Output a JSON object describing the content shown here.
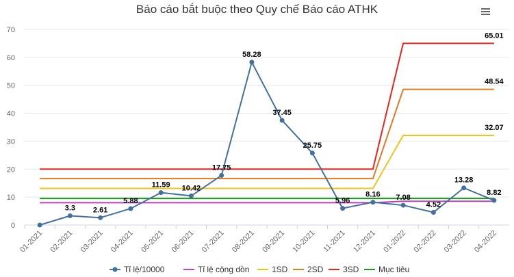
{
  "title": "Báo cáo bắt buộc theo Quy chế Báo cáo ATHK",
  "menu_icon": "hamburger-menu-icon",
  "chart_data": {
    "type": "line",
    "title": "Báo cáo bắt buộc theo Quy chế Báo cáo ATHK",
    "xlabel": "",
    "ylabel": "",
    "ylim": [
      0,
      70
    ],
    "yticks": [
      0,
      10,
      20,
      30,
      40,
      50,
      60,
      70
    ],
    "grid": true,
    "legend_position": "bottom",
    "categories": [
      "01-2021",
      "02-2021",
      "03-2021",
      "04-2021",
      "05-2021",
      "06-2021",
      "07-2021",
      "08-2021",
      "09-2021",
      "10-2021",
      "11-2021",
      "12-2021",
      "01-2022",
      "02-2022",
      "03-2022",
      "04-2022"
    ],
    "series": [
      {
        "name": "Tỉ lệ/10000",
        "color": "#44709d",
        "markers": true,
        "values": [
          0,
          3.3,
          2.61,
          5.88,
          11.59,
          10.42,
          17.75,
          58.28,
          37.45,
          25.75,
          5.96,
          8.16,
          7.08,
          4.52,
          13.28,
          8.82
        ],
        "labels": [
          "",
          "3.3",
          "2.61",
          "5.88",
          "11.59",
          "10.42",
          "17.75",
          "58.28",
          "37.45",
          "25.75",
          "5.96",
          "8.16",
          "7.08",
          "4.52",
          "13.28",
          "8.82"
        ]
      },
      {
        "name": "Tỉ lệ cộng dồn",
        "color": "#bf40bf",
        "markers": false,
        "values": [
          8,
          8,
          8,
          8,
          8,
          8,
          8,
          8,
          8,
          8,
          8,
          8,
          8.5,
          8.5,
          8.5,
          8.5
        ]
      },
      {
        "name": "1SD",
        "color": "#f0c419",
        "markers": false,
        "values": [
          13.1,
          13.1,
          13.1,
          13.1,
          13.1,
          13.1,
          13.1,
          13.1,
          13.1,
          13.1,
          13.1,
          13.1,
          32.07,
          32.07,
          32.07,
          32.07
        ],
        "labels": [
          "",
          "",
          "",
          "",
          "",
          "",
          "",
          "",
          "",
          "",
          "",
          "",
          "",
          "",
          "",
          "32.07"
        ]
      },
      {
        "name": "2SD",
        "color": "#e07a1f",
        "markers": false,
        "values": [
          16.6,
          16.6,
          16.6,
          16.6,
          16.6,
          16.6,
          16.6,
          16.6,
          16.6,
          16.6,
          16.6,
          16.6,
          48.54,
          48.54,
          48.54,
          48.54
        ],
        "labels": [
          "",
          "",
          "",
          "",
          "",
          "",
          "",
          "",
          "",
          "",
          "",
          "",
          "",
          "",
          "",
          "48.54"
        ]
      },
      {
        "name": "3SD",
        "color": "#e8231c",
        "markers": false,
        "values": [
          20,
          20,
          20,
          20,
          20,
          20,
          20,
          20,
          20,
          20,
          20,
          20,
          65.01,
          65.01,
          65.01,
          65.01
        ],
        "labels": [
          "",
          "",
          "",
          "",
          "",
          "",
          "",
          "",
          "",
          "",
          "",
          "",
          "",
          "",
          "",
          "65.01"
        ]
      },
      {
        "name": "Mục tiêu",
        "color": "#1a9a1a",
        "markers": false,
        "values": [
          9.5,
          9.5,
          9.5,
          9.5,
          9.5,
          9.5,
          9.5,
          9.5,
          9.5,
          9.5,
          9.5,
          9.5,
          9.5,
          9.5,
          9.5,
          9.5
        ]
      }
    ],
    "draw_order": [
      "Tỉ lệ cộng dồn",
      "1SD",
      "2SD",
      "3SD",
      "Mục tiêu",
      "Tỉ lệ/10000"
    ]
  }
}
